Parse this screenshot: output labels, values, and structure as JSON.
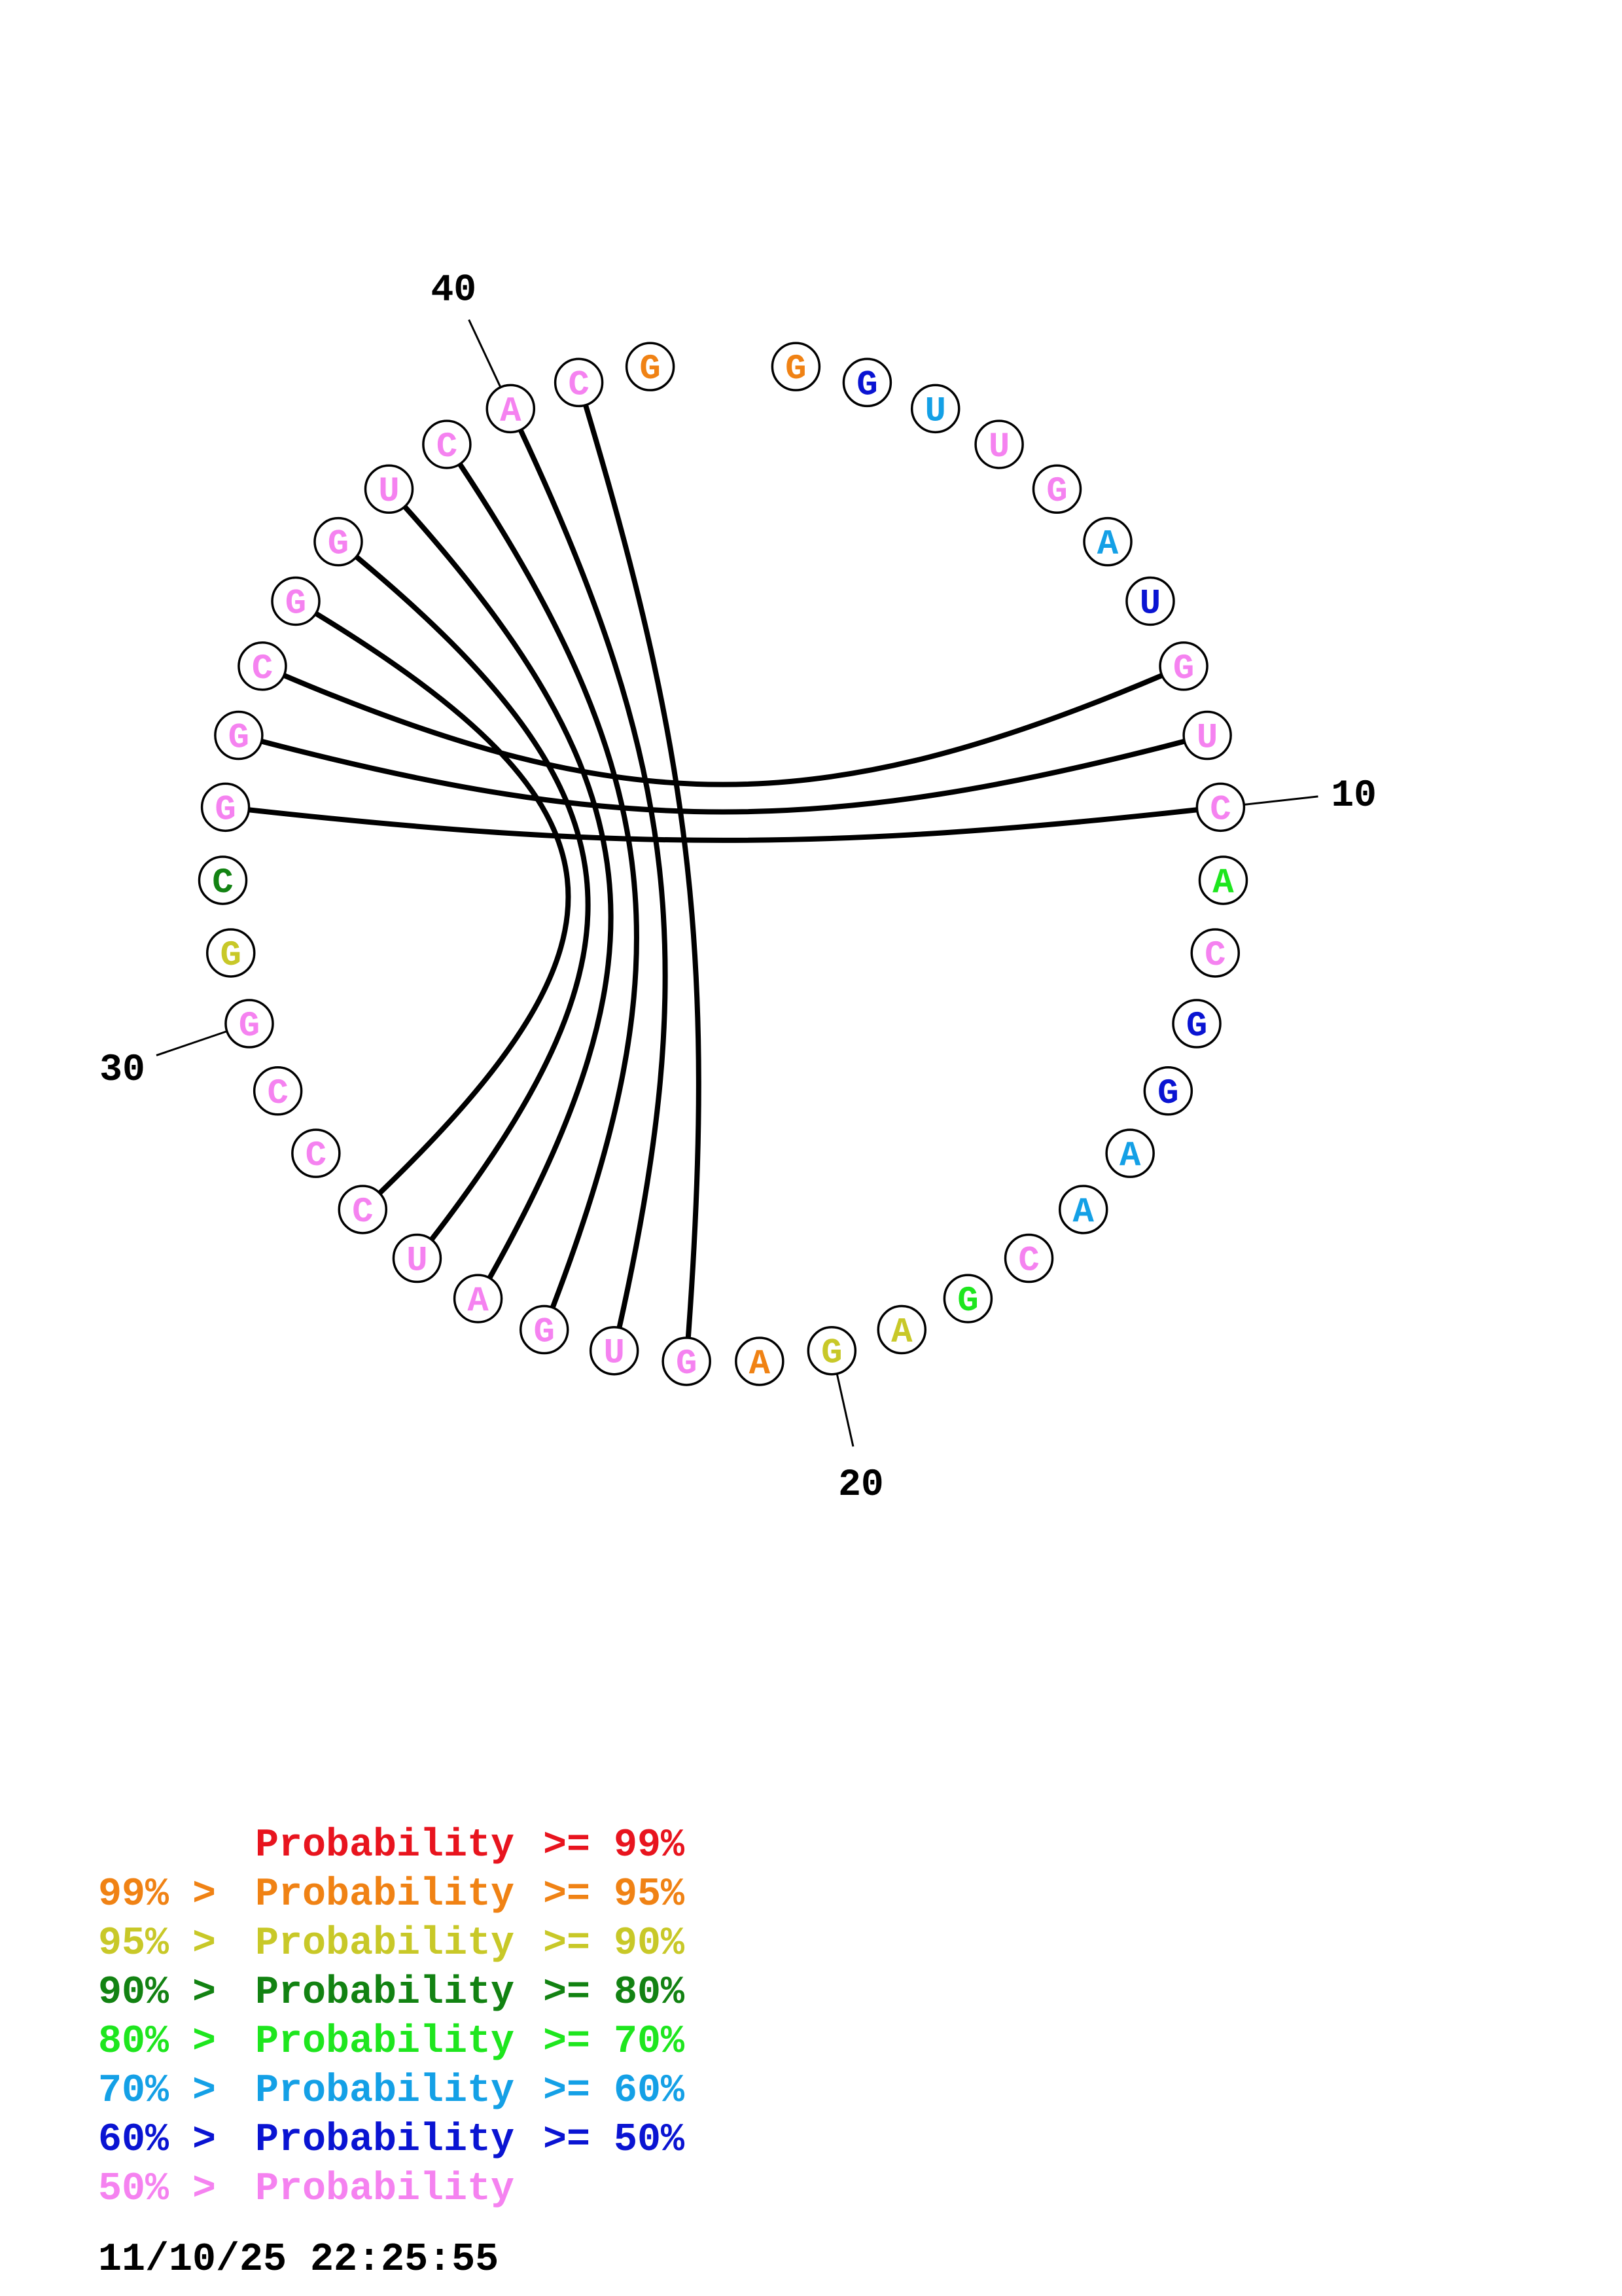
{
  "colors": {
    "p99": "#e8141e",
    "p95": "#f08214",
    "p90": "#c8c828",
    "p80": "#128212",
    "p70": "#1ee61e",
    "p60": "#14a0e6",
    "p50": "#0a14d2",
    "p0": "#f582f0"
  },
  "sequence": [
    {
      "n": 1,
      "base": "G",
      "p": "p95"
    },
    {
      "n": 2,
      "base": "G",
      "p": "p50"
    },
    {
      "n": 3,
      "base": "U",
      "p": "p60"
    },
    {
      "n": 4,
      "base": "U",
      "p": "p0"
    },
    {
      "n": 5,
      "base": "G",
      "p": "p0"
    },
    {
      "n": 6,
      "base": "A",
      "p": "p60"
    },
    {
      "n": 7,
      "base": "U",
      "p": "p50"
    },
    {
      "n": 8,
      "base": "G",
      "p": "p0"
    },
    {
      "n": 9,
      "base": "U",
      "p": "p0"
    },
    {
      "n": 10,
      "base": "C",
      "p": "p0"
    },
    {
      "n": 11,
      "base": "A",
      "p": "p70"
    },
    {
      "n": 12,
      "base": "C",
      "p": "p0"
    },
    {
      "n": 13,
      "base": "G",
      "p": "p50"
    },
    {
      "n": 14,
      "base": "G",
      "p": "p50"
    },
    {
      "n": 15,
      "base": "A",
      "p": "p60"
    },
    {
      "n": 16,
      "base": "A",
      "p": "p60"
    },
    {
      "n": 17,
      "base": "C",
      "p": "p0"
    },
    {
      "n": 18,
      "base": "G",
      "p": "p70"
    },
    {
      "n": 19,
      "base": "A",
      "p": "p90"
    },
    {
      "n": 20,
      "base": "G",
      "p": "p90"
    },
    {
      "n": 21,
      "base": "A",
      "p": "p95"
    },
    {
      "n": 22,
      "base": "G",
      "p": "p0"
    },
    {
      "n": 23,
      "base": "U",
      "p": "p0"
    },
    {
      "n": 24,
      "base": "G",
      "p": "p0"
    },
    {
      "n": 25,
      "base": "A",
      "p": "p0"
    },
    {
      "n": 26,
      "base": "U",
      "p": "p0"
    },
    {
      "n": 27,
      "base": "C",
      "p": "p0"
    },
    {
      "n": 28,
      "base": "C",
      "p": "p0"
    },
    {
      "n": 29,
      "base": "C",
      "p": "p0"
    },
    {
      "n": 30,
      "base": "G",
      "p": "p0"
    },
    {
      "n": 31,
      "base": "G",
      "p": "p90"
    },
    {
      "n": 32,
      "base": "C",
      "p": "p80"
    },
    {
      "n": 33,
      "base": "G",
      "p": "p0"
    },
    {
      "n": 34,
      "base": "G",
      "p": "p0"
    },
    {
      "n": 35,
      "base": "C",
      "p": "p0"
    },
    {
      "n": 36,
      "base": "G",
      "p": "p0"
    },
    {
      "n": 37,
      "base": "G",
      "p": "p0"
    },
    {
      "n": 38,
      "base": "U",
      "p": "p0"
    },
    {
      "n": 39,
      "base": "C",
      "p": "p0"
    },
    {
      "n": 40,
      "base": "A",
      "p": "p0"
    },
    {
      "n": 41,
      "base": "C",
      "p": "p0"
    },
    {
      "n": 42,
      "base": "G",
      "p": "p95"
    }
  ],
  "pairs": [
    [
      8,
      35
    ],
    [
      9,
      34
    ],
    [
      10,
      33
    ],
    [
      22,
      41
    ],
    [
      23,
      40
    ],
    [
      24,
      39
    ],
    [
      25,
      38
    ],
    [
      26,
      37
    ],
    [
      27,
      36
    ]
  ],
  "ticks": [
    {
      "n": 10,
      "label": "10"
    },
    {
      "n": 20,
      "label": "20"
    },
    {
      "n": 30,
      "label": "30"
    },
    {
      "n": 40,
      "label": "40"
    }
  ],
  "legend": [
    {
      "prefix": "",
      "label": "Probability",
      "suffix": ">= 99%",
      "color": "p99"
    },
    {
      "prefix": "99% >",
      "label": "Probability",
      "suffix": ">= 95%",
      "color": "p95"
    },
    {
      "prefix": "95% >",
      "label": "Probability",
      "suffix": ">= 90%",
      "color": "p90"
    },
    {
      "prefix": "90% >",
      "label": "Probability",
      "suffix": ">= 80%",
      "color": "p80"
    },
    {
      "prefix": "80% >",
      "label": "Probability",
      "suffix": ">= 70%",
      "color": "p70"
    },
    {
      "prefix": "70% >",
      "label": "Probability",
      "suffix": ">= 60%",
      "color": "p60"
    },
    {
      "prefix": "60% >",
      "label": "Probability",
      "suffix": ">= 50%",
      "color": "p50"
    },
    {
      "prefix": "50% >",
      "label": "Probability",
      "suffix": "",
      "color": "p0"
    }
  ],
  "timestamp": "11/10/25 22:25:55"
}
